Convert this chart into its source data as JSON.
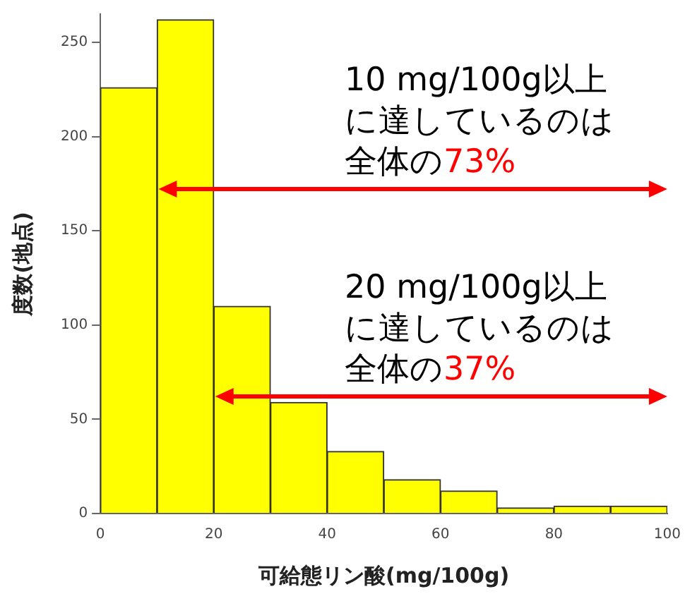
{
  "chart_data": {
    "type": "histogram",
    "xlabel": "可給態リン酸(mg/100g)",
    "ylabel": "度数(地点)",
    "bins": [
      0,
      10,
      20,
      30,
      40,
      50,
      60,
      70,
      80,
      90,
      100
    ],
    "values": [
      226,
      262,
      110,
      59,
      33,
      18,
      12,
      3,
      4,
      4
    ],
    "color": "#ffff00",
    "xlim": [
      0,
      100
    ],
    "xticks": [
      0,
      20,
      40,
      60,
      80,
      100
    ],
    "ylim": [
      0,
      265
    ],
    "yticks": [
      0,
      50,
      100,
      150,
      200,
      250
    ],
    "annotations": [
      "10 mg/100g以上に達しているのは全体の73%",
      "20 mg/100g以上に達しているのは全体の37%"
    ]
  }
}
